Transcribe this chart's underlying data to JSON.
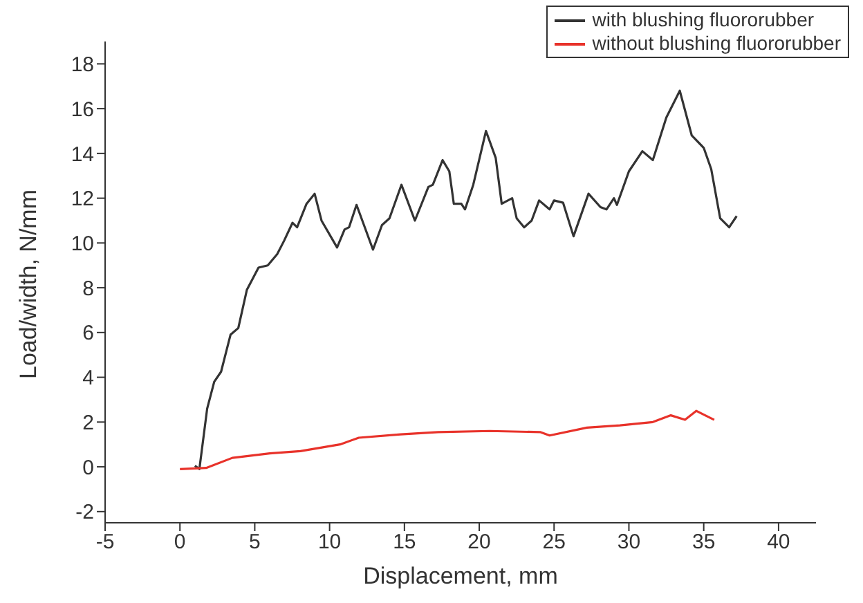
{
  "chart_data": {
    "type": "line",
    "xlabel": "Displacement, mm",
    "ylabel": "Load/width, N/mm",
    "xlim": [
      -5,
      42.5
    ],
    "xticks": [
      -5,
      0,
      5,
      10,
      15,
      20,
      25,
      30,
      35,
      40
    ],
    "ylim": [
      -2.5,
      19
    ],
    "yticks": [
      -2,
      0,
      2,
      4,
      6,
      8,
      10,
      12,
      14,
      16,
      18
    ],
    "grid": false,
    "legend": "top right",
    "marker": "none",
    "line_style": "solid",
    "series": [
      {
        "name": "with blushing fluororubber",
        "color": "#333333",
        "x": [
          1.0,
          1.3,
          1.82,
          2.29,
          2.75,
          3.38,
          3.9,
          4.47,
          5.25,
          5.87,
          6.5,
          6.96,
          7.52,
          7.83,
          8.46,
          9.0,
          9.46,
          10.5,
          11.0,
          11.3,
          11.8,
          12.9,
          13.5,
          14.0,
          14.8,
          15.7,
          16.6,
          16.9,
          17.55,
          18.0,
          18.3,
          18.8,
          19.05,
          19.6,
          20.45,
          21.1,
          21.5,
          22.2,
          22.5,
          23.0,
          23.5,
          24.0,
          24.7,
          25.0,
          25.6,
          26.3,
          27.3,
          28.1,
          28.5,
          29.0,
          29.2,
          30.0,
          30.9,
          31.6,
          32.5,
          33.4,
          34.2,
          35.0,
          35.5,
          36.1,
          36.7,
          37.2
        ],
        "values": [
          0.05,
          -0.1,
          2.6,
          3.8,
          4.25,
          5.9,
          6.2,
          7.9,
          8.9,
          9.0,
          9.5,
          10.1,
          10.9,
          10.7,
          11.75,
          12.2,
          11.0,
          9.8,
          10.6,
          10.7,
          11.7,
          9.7,
          10.8,
          11.1,
          12.6,
          11.0,
          12.5,
          12.6,
          13.7,
          13.2,
          11.75,
          11.75,
          11.5,
          12.6,
          15.0,
          13.8,
          11.75,
          12.0,
          11.1,
          10.7,
          11.0,
          11.9,
          11.5,
          11.9,
          11.8,
          10.3,
          12.2,
          11.6,
          11.5,
          12.0,
          11.7,
          13.2,
          14.1,
          13.7,
          15.6,
          16.8,
          14.8,
          14.25,
          13.3,
          11.1,
          10.7,
          11.2
        ]
      },
      {
        "name": "without blushing fluororubber",
        "color": "#e8322a",
        "x": [
          0,
          1.75,
          3.5,
          6.0,
          8.05,
          10.7,
          11.95,
          14.75,
          17.25,
          20.7,
          24.1,
          24.7,
          27.2,
          29.4,
          31.6,
          32.8,
          33.75,
          34.5,
          35.7
        ],
        "values": [
          -0.1,
          -0.05,
          0.4,
          0.6,
          0.7,
          1.0,
          1.3,
          1.45,
          1.55,
          1.6,
          1.55,
          1.4,
          1.75,
          1.85,
          2.0,
          2.3,
          2.1,
          2.5,
          2.1
        ]
      }
    ]
  }
}
